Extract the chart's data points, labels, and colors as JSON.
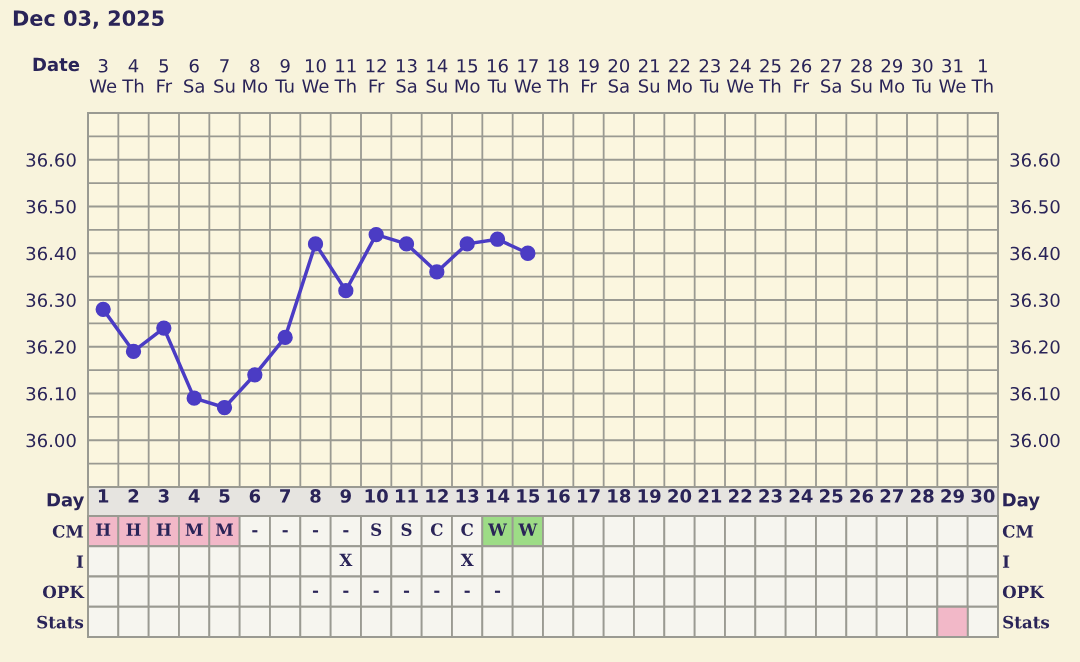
{
  "chart_data": [
    {
      "type": "line",
      "title": "Dec 03, 2025",
      "xlabel": "Date",
      "categories": [
        "3\nWe",
        "4\nTh",
        "5\nFr",
        "6\nSa",
        "7\nSu",
        "8\nMo",
        "9\nTu",
        "10\nWe",
        "11\nTh",
        "12\nFr",
        "13\nSa",
        "14\nSu",
        "15\nMo",
        "16\nTu",
        "17\nWe",
        "18\nTh",
        "19\nFr",
        "20\nSa",
        "21\nSu",
        "22\nMo",
        "23\nTu",
        "24\nWe",
        "25\nTh",
        "26\nFr",
        "27\nSa",
        "28\nSu",
        "29\nMo",
        "30\nTu",
        "31\nWe",
        "1\nTh"
      ],
      "series": [
        {
          "color": "#4b3cc4",
          "values": [
            36.28,
            36.19,
            36.24,
            36.09,
            36.07,
            36.14,
            36.22,
            36.42,
            36.32,
            36.44,
            36.42,
            36.36,
            36.42,
            36.43,
            36.4,
            null,
            null,
            null,
            null,
            null,
            null,
            null,
            null,
            null,
            null,
            null,
            null,
            null,
            null,
            null
          ]
        }
      ],
      "ylim": [
        35.9,
        36.7
      ],
      "yticks": [
        {
          "value": 35.95,
          "label": null
        },
        {
          "value": 36.0,
          "label": "36.00"
        },
        {
          "value": 36.05,
          "label": null
        },
        {
          "value": 36.1,
          "label": "36.10"
        },
        {
          "value": 36.15,
          "label": null
        },
        {
          "value": 36.2,
          "label": "36.20"
        },
        {
          "value": 36.25,
          "label": null
        },
        {
          "value": 36.3,
          "label": "36.30"
        },
        {
          "value": 36.35,
          "label": null
        },
        {
          "value": 36.4,
          "label": "36.40"
        },
        {
          "value": 36.45,
          "label": null
        },
        {
          "value": 36.5,
          "label": "36.50"
        },
        {
          "value": 36.55,
          "label": null
        },
        {
          "value": 36.6,
          "label": "36.60"
        },
        {
          "value": 36.65,
          "label": null
        }
      ],
      "y2lim": [
        35.9,
        36.7
      ],
      "y2ticks": [
        {
          "value": 36.0,
          "label": "36.00"
        },
        {
          "value": 36.1,
          "label": "36.10"
        },
        {
          "value": 36.2,
          "label": "36.20"
        },
        {
          "value": 36.3,
          "label": "36.30"
        },
        {
          "value": 36.4,
          "label": "36.40"
        },
        {
          "value": 36.5,
          "label": "36.50"
        },
        {
          "value": 36.6,
          "label": "36.60"
        }
      ],
      "grid": true,
      "marker": "circle",
      "line_style": "solid"
    },
    {
      "type": "heatmap",
      "xlabel": "Day",
      "categories": [
        "1",
        "2",
        "3",
        "4",
        "5",
        "6",
        "7",
        "8",
        "9",
        "10",
        "11",
        "12",
        "13",
        "14",
        "15",
        "16",
        "17",
        "18",
        "19",
        "20",
        "21",
        "22",
        "23",
        "24",
        "25",
        "26",
        "27",
        "28",
        "29",
        "30"
      ],
      "y_categories": [
        "CM",
        "I",
        "OPK",
        "Stats"
      ],
      "y2_categories": [
        "CM",
        "I",
        "OPK",
        "Stats"
      ],
      "cells": [
        [
          "H",
          "H",
          "H",
          "M",
          "M",
          "-",
          "-",
          "-",
          "-",
          "S",
          "S",
          "C",
          "C",
          "W",
          "W",
          null,
          null,
          null,
          null,
          null,
          null,
          null,
          null,
          null,
          null,
          null,
          null,
          null,
          null,
          null
        ],
        [
          null,
          null,
          null,
          null,
          null,
          null,
          null,
          null,
          "X",
          null,
          null,
          null,
          "X",
          null,
          null,
          null,
          null,
          null,
          null,
          null,
          null,
          null,
          null,
          null,
          null,
          null,
          null,
          null,
          null,
          null
        ],
        [
          null,
          null,
          null,
          null,
          null,
          null,
          null,
          "-",
          "-",
          "-",
          "-",
          "-",
          "-",
          "-",
          null,
          null,
          null,
          null,
          null,
          null,
          null,
          null,
          null,
          null,
          null,
          null,
          null,
          null,
          null,
          null
        ],
        [
          null,
          null,
          null,
          null,
          null,
          null,
          null,
          null,
          null,
          null,
          null,
          null,
          null,
          null,
          null,
          null,
          null,
          null,
          null,
          null,
          null,
          null,
          null,
          null,
          null,
          null,
          null,
          null,
          null,
          null
        ]
      ],
      "colors": [
        [
          "#f2b8c8",
          "#f2b8c8",
          "#f2b8c8",
          "#f2b8c8",
          "#f2b8c8",
          null,
          null,
          null,
          null,
          null,
          null,
          null,
          null,
          "#9ddc86",
          "#9ddc86",
          null,
          null,
          null,
          null,
          null,
          null,
          null,
          null,
          null,
          null,
          null,
          null,
          null,
          null,
          null
        ],
        [
          null,
          null,
          null,
          null,
          null,
          null,
          null,
          null,
          null,
          null,
          null,
          null,
          null,
          null,
          null,
          null,
          null,
          null,
          null,
          null,
          null,
          null,
          null,
          null,
          null,
          null,
          null,
          null,
          null,
          null
        ],
        [
          null,
          null,
          null,
          null,
          null,
          null,
          null,
          null,
          null,
          null,
          null,
          null,
          null,
          null,
          null,
          null,
          null,
          null,
          null,
          null,
          null,
          null,
          null,
          null,
          null,
          null,
          null,
          null,
          null,
          null
        ],
        [
          null,
          null,
          null,
          null,
          null,
          null,
          null,
          null,
          null,
          null,
          null,
          null,
          null,
          null,
          null,
          null,
          null,
          null,
          null,
          null,
          null,
          null,
          null,
          null,
          null,
          null,
          null,
          null,
          "#f2b8c8",
          null
        ]
      ]
    }
  ]
}
